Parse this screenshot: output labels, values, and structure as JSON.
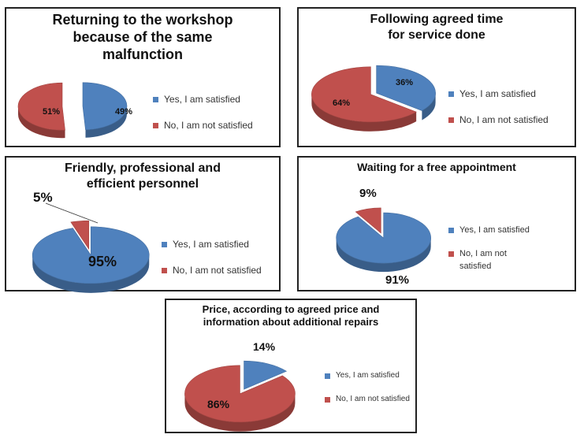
{
  "colors": {
    "yes": "#4f81bd",
    "no": "#c0504d"
  },
  "chart_data": [
    {
      "type": "pie",
      "title": "Returning to the workshop because of the same malfunction",
      "categories": [
        "Yes, I am satisfied",
        "No, I am not satisfied"
      ],
      "values": [
        49,
        51
      ],
      "labels": [
        "49%",
        "51%"
      ]
    },
    {
      "type": "pie",
      "title": "Following agreed time for service done",
      "categories": [
        "Yes, I am satisfied",
        "No, I am not satisfied"
      ],
      "values": [
        36,
        64
      ],
      "labels": [
        "36%",
        "64%"
      ]
    },
    {
      "type": "pie",
      "title": "Friendly, professional and efficient personnel",
      "categories": [
        "Yes, I am satisfied",
        "No, I am not satisfied"
      ],
      "values": [
        95,
        5
      ],
      "labels": [
        "95%",
        "5%"
      ]
    },
    {
      "type": "pie",
      "title": "Waiting for a free appointment",
      "categories": [
        "Yes, I am satisfied",
        "No, I am not satisfied"
      ],
      "values": [
        91,
        9
      ],
      "labels": [
        "91%",
        "9%"
      ]
    },
    {
      "type": "pie",
      "title": "Price, according to agreed price and information about additional repairs",
      "categories": [
        "Yes, I am satisfied",
        "No, I am not satisfied"
      ],
      "values": [
        14,
        86
      ],
      "labels": [
        "14%",
        "86%"
      ]
    }
  ]
}
